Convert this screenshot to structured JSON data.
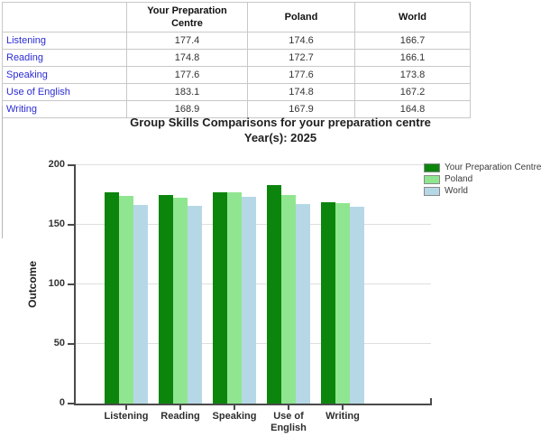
{
  "table": {
    "columns": [
      "",
      "Your Preparation Centre",
      "Poland",
      "World"
    ],
    "rows": [
      {
        "label": "Listening",
        "values": [
          177.4,
          174.6,
          166.7
        ]
      },
      {
        "label": "Reading",
        "values": [
          174.8,
          172.7,
          166.1
        ]
      },
      {
        "label": "Speaking",
        "values": [
          177.6,
          177.6,
          173.8
        ]
      },
      {
        "label": "Use of English",
        "values": [
          183.1,
          174.8,
          167.2
        ]
      },
      {
        "label": "Writing",
        "values": [
          168.9,
          167.9,
          164.8
        ]
      }
    ]
  },
  "chart_data": {
    "type": "bar",
    "title": "Group Skills Comparisons for your preparation centre",
    "subtitle": "Year(s): 2025",
    "categories": [
      "Listening",
      "Reading",
      "Speaking",
      "Use of English",
      "Writing"
    ],
    "series": [
      {
        "name": "Your Preparation Centre",
        "color": "#0c850c",
        "values": [
          177.4,
          174.8,
          177.6,
          183.1,
          168.9
        ]
      },
      {
        "name": "Poland",
        "color": "#90e690",
        "values": [
          174.6,
          172.7,
          177.6,
          174.8,
          167.9
        ]
      },
      {
        "name": "World",
        "color": "#b6d8e6",
        "values": [
          166.7,
          166.1,
          173.8,
          167.2,
          164.8
        ]
      }
    ],
    "xlabel": "",
    "ylabel": "Outcome",
    "ylim": [
      0,
      200
    ],
    "yticks": [
      0,
      50,
      100,
      150,
      200
    ],
    "grid": true,
    "legend_position": "right"
  }
}
